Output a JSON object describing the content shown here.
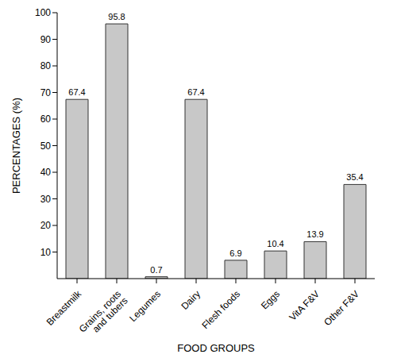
{
  "chart_data": {
    "type": "bar",
    "x_label": "FOOD GROUPS",
    "y_label": "PERCENTAGES (%)",
    "categories": [
      "Breastmilk",
      "Grains, roots and tubers",
      "Legumes",
      "Dairy",
      "Flesh foods",
      "Eggs",
      "VitA F&V",
      "Other F&V"
    ],
    "values": [
      67.4,
      95.8,
      0.7,
      67.4,
      6.9,
      10.4,
      13.9,
      35.4
    ],
    "color": "#c8c8c8",
    "ylim": [
      0,
      100
    ],
    "yticks": [
      10,
      20,
      30,
      40,
      50,
      60,
      70,
      80,
      90,
      100
    ],
    "grid": false,
    "data_labels": true
  }
}
